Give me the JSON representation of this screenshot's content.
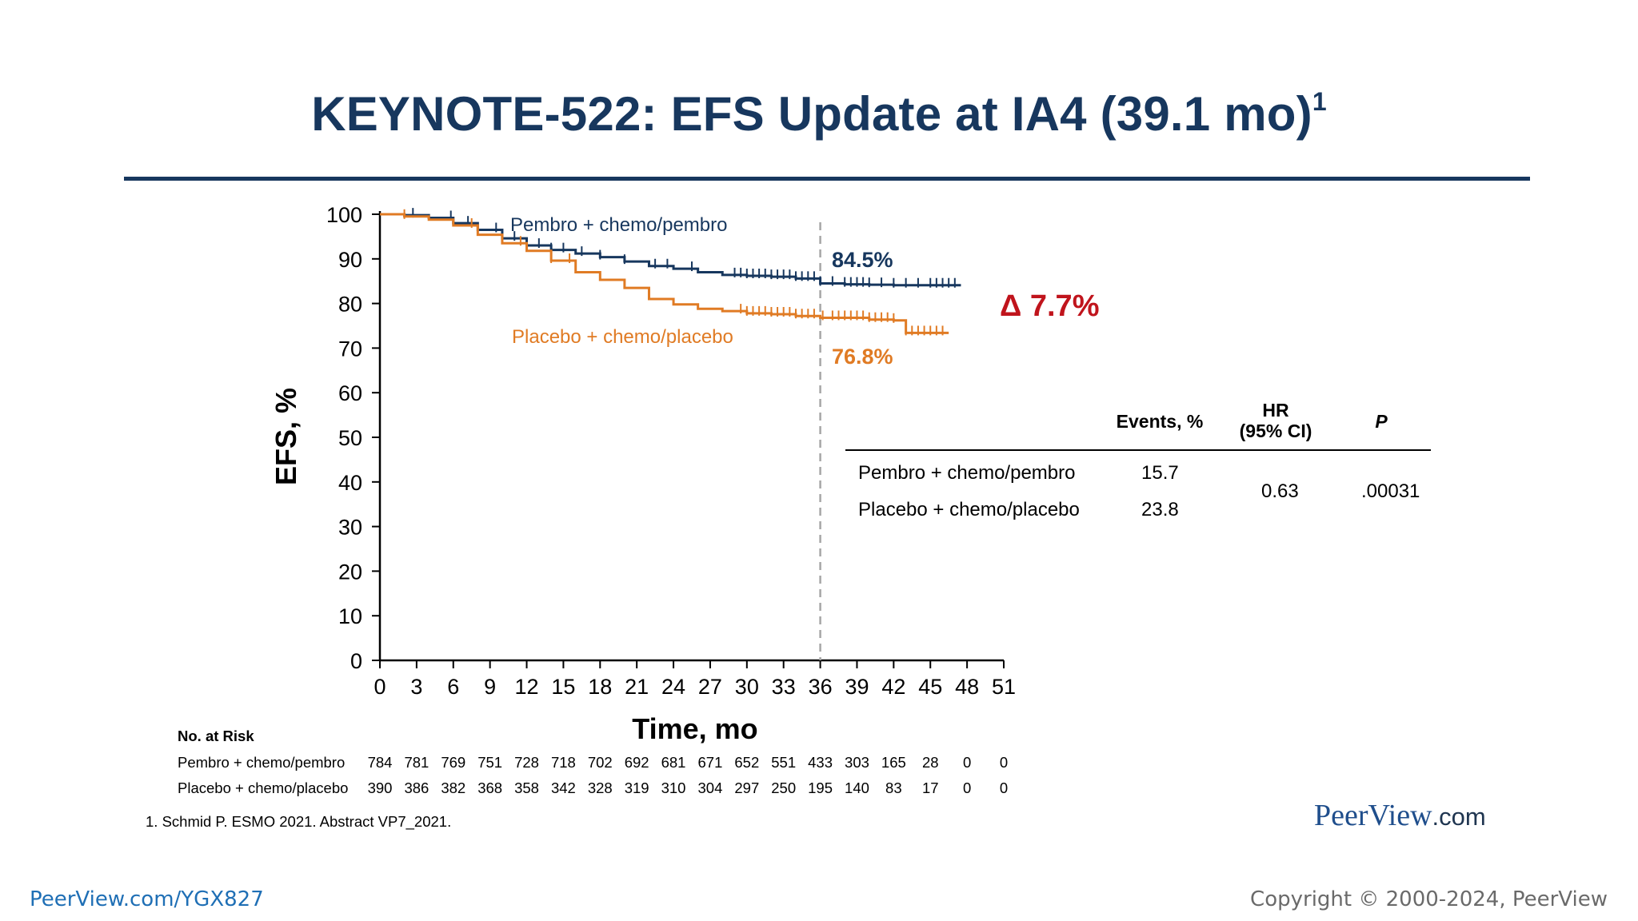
{
  "slide": {
    "title": "KEYNOTE-522: EFS Update at IA4 (39.1 mo)",
    "title_sup": "1",
    "footnote": "1. Schmid P. ESMO 2021. Abstract VP7_2021.",
    "logo_main": "PeerView",
    "logo_tld": ".com",
    "link": "PeerView.com/YGX827",
    "copyright": "Copyright © 2000-2024, PeerView"
  },
  "chart_data": {
    "type": "line",
    "xlabel": "Time, mo",
    "ylabel": "EFS, %",
    "xlim": [
      0,
      51
    ],
    "ylim": [
      0,
      100
    ],
    "x_ticks": [
      0,
      3,
      6,
      9,
      12,
      15,
      18,
      21,
      24,
      27,
      30,
      33,
      36,
      39,
      42,
      45,
      48,
      51
    ],
    "y_ticks": [
      0,
      10,
      20,
      30,
      40,
      50,
      60,
      70,
      80,
      90,
      100
    ],
    "reference_line_x": 36,
    "series": [
      {
        "name": "Pembro + chemo/pembro",
        "color": "#17375e",
        "x": [
          0,
          2,
          4,
          6,
          8,
          10,
          12,
          14,
          16,
          18,
          20,
          22,
          24,
          26,
          28,
          30,
          32,
          34,
          36,
          38,
          40,
          42,
          44,
          46,
          47.5
        ],
        "y": [
          100,
          99.8,
          99.2,
          98,
          96.5,
          94.6,
          93,
          92,
          91.2,
          90.4,
          89.4,
          88.4,
          87.8,
          87,
          86.4,
          86.2,
          86,
          85.6,
          84.5,
          84.3,
          84.2,
          84.1,
          84.1,
          84.1,
          84.1
        ],
        "censor_x": [
          2.7,
          5.8,
          7.2,
          9.5,
          11,
          13,
          14,
          15,
          16.5,
          18,
          20,
          22.5,
          23.5,
          25.5,
          29,
          29.5,
          30,
          30.5,
          31,
          31.5,
          32,
          32.5,
          33,
          33.5,
          34,
          34.5,
          35,
          35.5,
          36,
          37,
          38,
          38.5,
          39,
          39.5,
          40,
          41,
          42,
          43,
          44,
          45,
          45.5,
          46,
          46.5,
          47
        ]
      },
      {
        "name": "Placebo + chemo/placebo",
        "color": "#e07b24",
        "x": [
          0,
          2,
          4,
          6,
          8,
          10,
          12,
          14,
          16,
          18,
          20,
          22,
          24,
          26,
          28,
          30,
          32,
          34,
          36,
          38,
          40,
          42,
          43,
          44,
          46.5
        ],
        "y": [
          100,
          99.5,
          98.8,
          97.5,
          95.4,
          93.5,
          91.8,
          89.6,
          87,
          85.3,
          83.5,
          81,
          79.8,
          78.8,
          78.3,
          77.8,
          77.6,
          77.2,
          76.8,
          76.8,
          76.4,
          76.2,
          73.4,
          73.4,
          73.4
        ],
        "censor_x": [
          2,
          7.5,
          11.5,
          14,
          15.5,
          29.5,
          30,
          30.5,
          31,
          31.5,
          32,
          32.5,
          33,
          33.5,
          34,
          34.5,
          35,
          35.5,
          36.2,
          37,
          37.5,
          38,
          38.5,
          39,
          39.5,
          40,
          40.5,
          41,
          41.5,
          42,
          43,
          43.5,
          44,
          44.5,
          45,
          45.5,
          46
        ]
      }
    ],
    "annotations": {
      "pembro_value": "84.5%",
      "placebo_value": "76.8%",
      "delta": "Δ 7.7%"
    },
    "results_table": {
      "headers": [
        "Events, %",
        "HR\n(95% CI)",
        "P"
      ],
      "rows": [
        {
          "arm": "Pembro + chemo/pembro",
          "events": "15.7"
        },
        {
          "arm": "Placebo + chemo/placebo",
          "events": "23.8"
        }
      ],
      "hr": "0.63",
      "p": ".00031"
    },
    "risk_table": {
      "title": "No. at Risk",
      "rows": [
        {
          "label": "Pembro + chemo/pembro",
          "values": [
            "784",
            "781",
            "769",
            "751",
            "728",
            "718",
            "702",
            "692",
            "681",
            "671",
            "652",
            "551",
            "433",
            "303",
            "165",
            "28",
            "0",
            "0"
          ]
        },
        {
          "label": "Placebo + chemo/placebo",
          "values": [
            "390",
            "386",
            "382",
            "368",
            "358",
            "342",
            "328",
            "319",
            "310",
            "304",
            "297",
            "250",
            "195",
            "140",
            "83",
            "17",
            "0",
            "0"
          ]
        }
      ]
    }
  }
}
